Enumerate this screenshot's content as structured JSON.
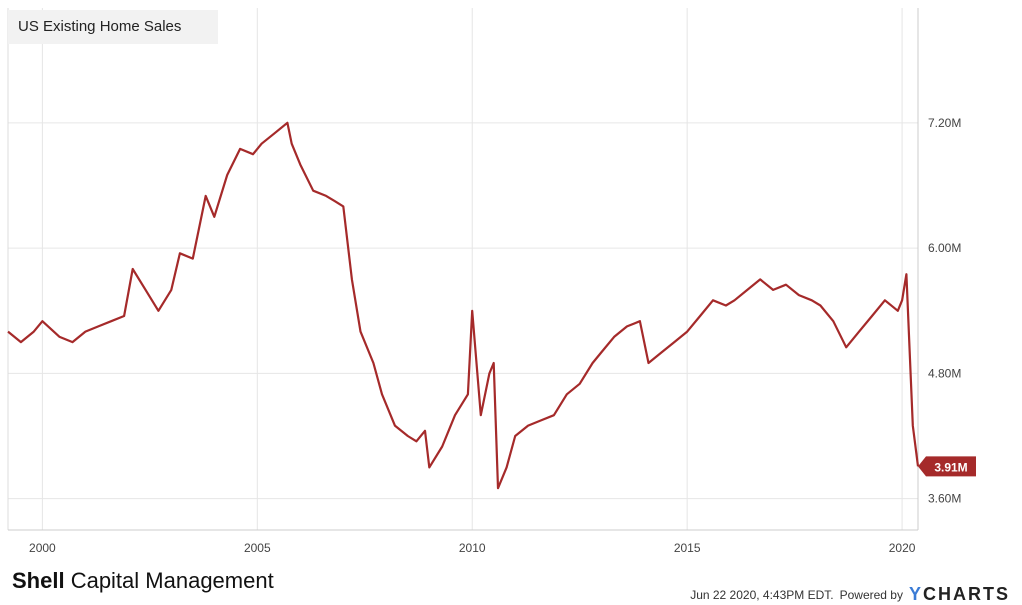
{
  "chart_data": {
    "type": "line",
    "title": "US Existing Home Sales",
    "x_ticks": [
      "2000",
      "2005",
      "2010",
      "2015",
      "2020"
    ],
    "x_tick_values": [
      2000,
      2005,
      2010,
      2015,
      2020
    ],
    "y_ticks": [
      "3.60M",
      "4.80M",
      "6.00M",
      "7.20M"
    ],
    "y_tick_values": [
      3.6,
      4.8,
      6.0,
      7.2
    ],
    "xlim": [
      1999.2,
      2020.37
    ],
    "ylim": [
      3.3,
      8.3
    ],
    "grid": true,
    "last_value_label": "3.91M",
    "series": [
      {
        "color": "#a52a2a",
        "x": [
          1999.2,
          1999.5,
          1999.8,
          2000.0,
          2000.4,
          2000.7,
          2001.0,
          2001.3,
          2001.6,
          2001.9,
          2002.1,
          2002.4,
          2002.7,
          2003.0,
          2003.2,
          2003.5,
          2003.8,
          2004.0,
          2004.3,
          2004.6,
          2004.9,
          2005.1,
          2005.4,
          2005.7,
          2005.8,
          2006.0,
          2006.3,
          2006.6,
          2006.8,
          2007.0,
          2007.2,
          2007.4,
          2007.7,
          2007.9,
          2008.2,
          2008.5,
          2008.7,
          2008.9,
          2009.0,
          2009.3,
          2009.6,
          2009.9,
          2010.0,
          2010.2,
          2010.4,
          2010.5,
          2010.6,
          2010.8,
          2011.0,
          2011.3,
          2011.6,
          2011.9,
          2012.2,
          2012.5,
          2012.8,
          2013.0,
          2013.3,
          2013.6,
          2013.9,
          2014.1,
          2014.4,
          2014.7,
          2015.0,
          2015.3,
          2015.6,
          2015.9,
          2016.1,
          2016.4,
          2016.7,
          2017.0,
          2017.3,
          2017.6,
          2017.9,
          2018.1,
          2018.4,
          2018.7,
          2019.0,
          2019.3,
          2019.6,
          2019.9,
          2020.0,
          2020.1,
          2020.25,
          2020.37
        ],
        "values": [
          5.2,
          5.1,
          5.2,
          5.3,
          5.15,
          5.1,
          5.2,
          5.25,
          5.3,
          5.35,
          5.8,
          5.6,
          5.4,
          5.6,
          5.95,
          5.9,
          6.5,
          6.3,
          6.7,
          6.95,
          6.9,
          7.0,
          7.1,
          7.2,
          7.0,
          6.8,
          6.55,
          6.5,
          6.45,
          6.4,
          5.7,
          5.2,
          4.9,
          4.6,
          4.3,
          4.2,
          4.15,
          4.25,
          3.9,
          4.1,
          4.4,
          4.6,
          5.4,
          4.4,
          4.8,
          4.9,
          3.7,
          3.9,
          4.2,
          4.3,
          4.35,
          4.4,
          4.6,
          4.7,
          4.9,
          5.0,
          5.15,
          5.25,
          5.3,
          4.9,
          5.0,
          5.1,
          5.2,
          5.35,
          5.5,
          5.45,
          5.5,
          5.6,
          5.7,
          5.6,
          5.65,
          5.55,
          5.5,
          5.45,
          5.3,
          5.05,
          5.2,
          5.35,
          5.5,
          5.4,
          5.5,
          5.75,
          4.3,
          3.91
        ]
      }
    ]
  },
  "footer": {
    "brand_bold": "Shell",
    "brand_rest": " Capital Management",
    "timestamp": "Jun 22 2020, 4:43PM EDT.",
    "powered_by": "Powered by",
    "logo_y": "Y",
    "logo_rest": "CHARTS"
  }
}
